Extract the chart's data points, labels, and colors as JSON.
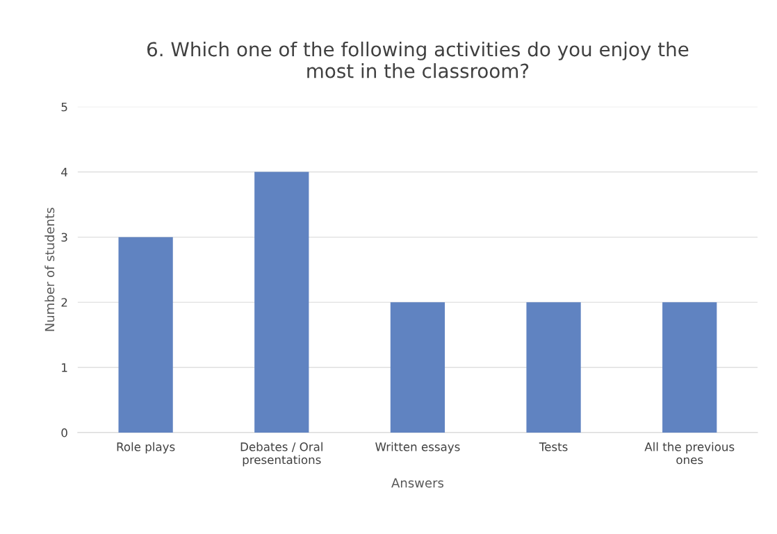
{
  "chart_data": {
    "type": "bar",
    "title": "6. Which one of the following activities do you enjoy the\nmost in the classroom?",
    "xlabel": "Answers",
    "ylabel": "Number of students",
    "categories": [
      "Role plays",
      "Debates / Oral\npresentations",
      "Written essays",
      "Tests",
      "All the previous\nones"
    ],
    "values": [
      3,
      4,
      2,
      2,
      2
    ],
    "color": "#6083c1",
    "ylim": [
      0,
      5
    ],
    "yticks": [
      0,
      1,
      2,
      3,
      4,
      5
    ],
    "grid": "y"
  }
}
